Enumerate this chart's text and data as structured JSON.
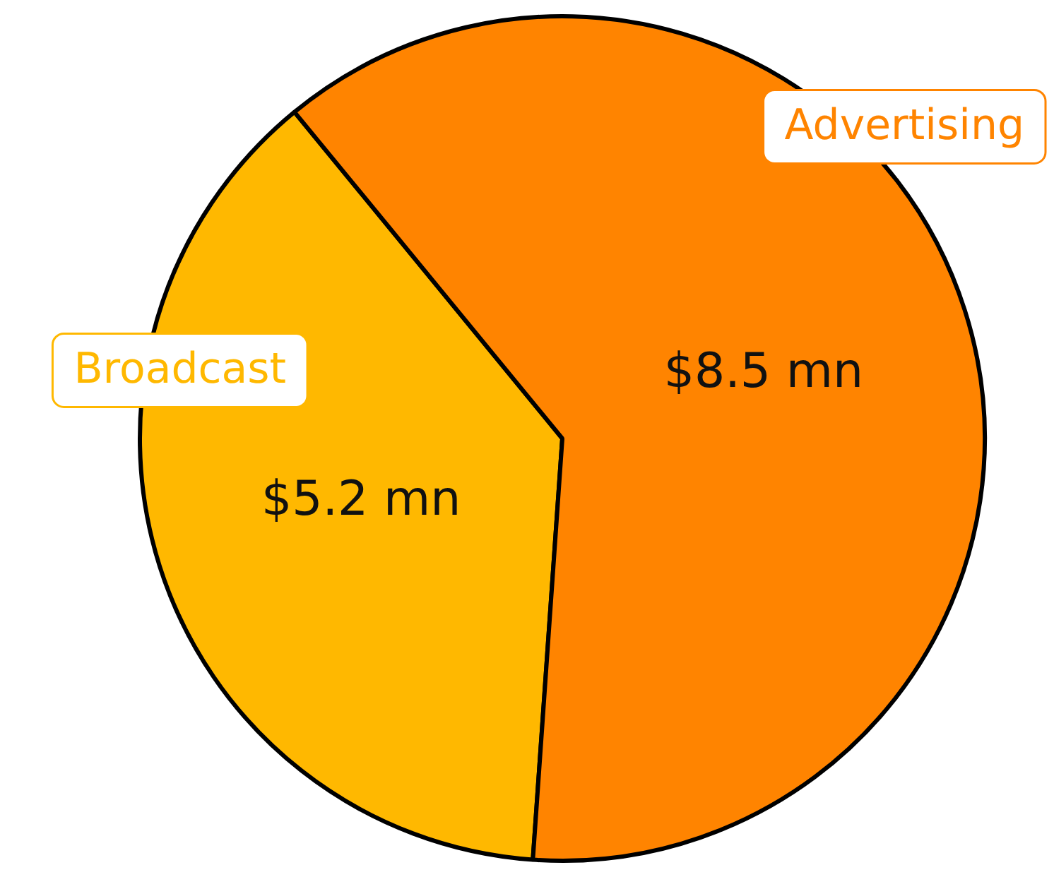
{
  "chart_data": {
    "type": "pie",
    "categories": [
      "Broadcast",
      "Advertising"
    ],
    "values": [
      5.2,
      8.5
    ],
    "value_labels": [
      "$5.2 mn",
      "$8.5 mn"
    ],
    "colors": [
      "#ffb800",
      "#ff8400"
    ],
    "legend": false
  }
}
